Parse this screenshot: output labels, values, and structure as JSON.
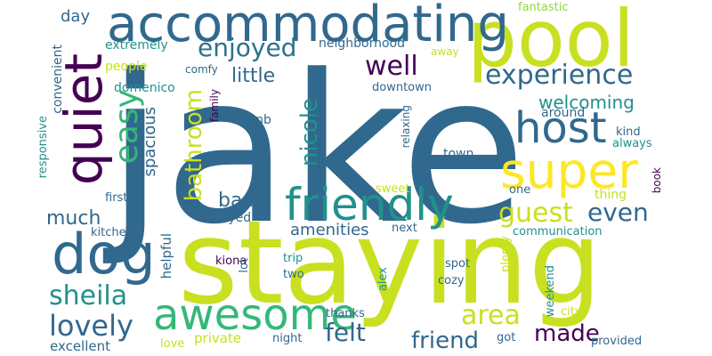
{
  "palette": {
    "yellow_green": "#c8e020",
    "lime": "#90d743",
    "green": "#5ec962",
    "teal_green": "#35b779",
    "teal": "#21918c",
    "blue_teal": "#2c728e",
    "blue": "#31688e",
    "slate": "#3b528b",
    "indigo": "#443983",
    "purple": "#440154",
    "dark_purple": "#472d7b",
    "yellow": "#fde725"
  },
  "words": [
    {
      "text": "jake",
      "color": "#31688e"
    },
    {
      "text": "staying",
      "color": "#c8e020"
    },
    {
      "text": "pool",
      "color": "#c8e020"
    },
    {
      "text": "accommodating",
      "color": "#31688e"
    },
    {
      "text": "quiet",
      "color": "#440154"
    },
    {
      "text": "super",
      "color": "#fde725"
    },
    {
      "text": "friendly",
      "color": "#21918c"
    },
    {
      "text": "dog",
      "color": "#31688e"
    },
    {
      "text": "awesome",
      "color": "#35b779"
    },
    {
      "text": "host",
      "color": "#31688e"
    },
    {
      "text": "enjoyed",
      "color": "#2c728e"
    },
    {
      "text": "experience",
      "color": "#31688e"
    },
    {
      "text": "well",
      "color": "#440154"
    },
    {
      "text": "lovely",
      "color": "#31688e"
    },
    {
      "text": "sheila",
      "color": "#21918c"
    },
    {
      "text": "area",
      "color": "#c8e020"
    },
    {
      "text": "guest",
      "color": "#c8e020"
    },
    {
      "text": "easy",
      "color": "#35b779"
    },
    {
      "text": "bathroom",
      "color": "#c8e020"
    },
    {
      "text": "felt",
      "color": "#31688e"
    },
    {
      "text": "made",
      "color": "#440154"
    },
    {
      "text": "friend",
      "color": "#31688e"
    },
    {
      "text": "welcoming",
      "color": "#21918c"
    },
    {
      "text": "even",
      "color": "#31688e"
    },
    {
      "text": "nicole",
      "color": "#21918c"
    },
    {
      "text": "much",
      "color": "#31688e"
    },
    {
      "text": "back",
      "color": "#31688e"
    },
    {
      "text": "little",
      "color": "#31688e"
    },
    {
      "text": "spacious",
      "color": "#31688e"
    },
    {
      "text": "day",
      "color": "#31688e"
    },
    {
      "text": "neighborhood",
      "color": "#31688e"
    },
    {
      "text": "extremely",
      "color": "#21918c"
    },
    {
      "text": "fantastic",
      "color": "#90d743"
    },
    {
      "text": "away",
      "color": "#c8e020"
    },
    {
      "text": "people",
      "color": "#c8e020"
    },
    {
      "text": "comfy",
      "color": "#31688e"
    },
    {
      "text": "domenico",
      "color": "#21918c"
    },
    {
      "text": "downtown",
      "color": "#31688e"
    },
    {
      "text": "convenient",
      "color": "#31688e"
    },
    {
      "text": "around",
      "color": "#31688e"
    },
    {
      "text": "family",
      "color": "#440154"
    },
    {
      "text": "airbnb",
      "color": "#31688e"
    },
    {
      "text": "relaxing",
      "color": "#31688e"
    },
    {
      "text": "kind",
      "color": "#31688e"
    },
    {
      "text": "always",
      "color": "#21918c"
    },
    {
      "text": "responsive",
      "color": "#21918c"
    },
    {
      "text": "town",
      "color": "#31688e"
    },
    {
      "text": "first",
      "color": "#31688e"
    },
    {
      "text": "sweet",
      "color": "#c8e020"
    },
    {
      "text": "one",
      "color": "#31688e"
    },
    {
      "text": "thing",
      "color": "#c8e020"
    },
    {
      "text": "book",
      "color": "#440154"
    },
    {
      "text": "stayed",
      "color": "#31688e"
    },
    {
      "text": "amenities",
      "color": "#31688e"
    },
    {
      "text": "next",
      "color": "#31688e"
    },
    {
      "text": "communication",
      "color": "#21918c"
    },
    {
      "text": "kitchen",
      "color": "#31688e"
    },
    {
      "text": "kiona",
      "color": "#440154"
    },
    {
      "text": "trip",
      "color": "#21918c"
    },
    {
      "text": "spot",
      "color": "#31688e"
    },
    {
      "text": "plenty",
      "color": "#c8e020"
    },
    {
      "text": "helpful",
      "color": "#31688e"
    },
    {
      "text": "lot",
      "color": "#31688e"
    },
    {
      "text": "two",
      "color": "#31688e"
    },
    {
      "text": "alex",
      "color": "#21918c"
    },
    {
      "text": "cozy",
      "color": "#31688e"
    },
    {
      "text": "weekend",
      "color": "#21918c"
    },
    {
      "text": "city",
      "color": "#c8e020"
    },
    {
      "text": "thanks",
      "color": "#31688e"
    },
    {
      "text": "private",
      "color": "#c8e020"
    },
    {
      "text": "night",
      "color": "#31688e"
    },
    {
      "text": "got",
      "color": "#31688e"
    },
    {
      "text": "love",
      "color": "#c8e020"
    },
    {
      "text": "excellent",
      "color": "#31688e"
    },
    {
      "text": "provided",
      "color": "#31688e"
    }
  ]
}
